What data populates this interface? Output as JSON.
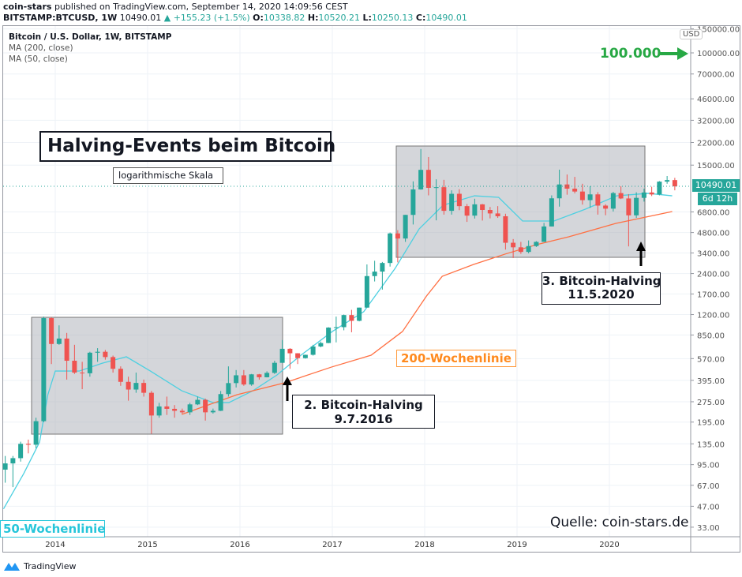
{
  "header": {
    "publisher": "coin-stars",
    "published_text": "published on TradingView.com, September 14, 2020 14:09:56 CEST",
    "symbol": "BITSTAMP:BTCUSD, 1W",
    "last": "10490.01",
    "change": "+155.23 (+1.5%)",
    "o_label": "O:",
    "o": "10338.82",
    "h_label": "H:",
    "h": "10520.21",
    "l_label": "L:",
    "l": "10250.13",
    "c_label": "C:",
    "c": "10490.01"
  },
  "legend": {
    "title": "Bitcoin / U.S. Dollar, 1W, BITSTAMP",
    "ma200": "MA (200, close)",
    "ma50": "MA (50, close)"
  },
  "annotations": {
    "main_title": "Halving-Events beim Bitcoin",
    "scale_note": "logarithmische Skala",
    "target": "100.000",
    "ma200_label": "200-Wochenlinie",
    "ma50_label": "50-Wochenlinie",
    "halving2_line1": "2. Bitcoin-Halving",
    "halving2_line2": "9.7.2016",
    "halving3_line1": "3. Bitcoin-Halving",
    "halving3_line2": "11.5.2020",
    "source": "Quelle: coin-stars.de"
  },
  "price_axis": {
    "currency": "USD",
    "last_price": "10490.01",
    "countdown": "6d 12h"
  },
  "footer": {
    "brand": "TradingView"
  },
  "colors": {
    "up": "#26a69a",
    "down": "#ef5350",
    "ma50": "#4dd0e1",
    "ma200": "#ff7043",
    "target": "#27a844",
    "box": "#a9adb5"
  },
  "chart_data": {
    "type": "candlestick",
    "scale": "log",
    "grid": true,
    "ylim": [
      30,
      160000
    ],
    "xlim": [
      2013.4,
      2020.95
    ],
    "x_ticks": [
      "2014",
      "2015",
      "2016",
      "2017",
      "2018",
      "2019",
      "2020"
    ],
    "y_ticks": [
      "150000.00",
      "100000.00",
      "70000.00",
      "46000.00",
      "32000.00",
      "22000.00",
      "15000.00",
      "6800.00",
      "4800.00",
      "3400.00",
      "2400.00",
      "1700.00",
      "1200.00",
      "850.00",
      "570.00",
      "395.00",
      "275.00",
      "195.00",
      "135.00",
      "95.00",
      "67.00",
      "47.00",
      "33.00"
    ],
    "candles_start": "2013-06",
    "candles_interval": "month",
    "ohlc_hlc": [
      [
        110,
        70,
        97
      ],
      [
        110,
        65,
        106
      ],
      [
        140,
        100,
        135
      ],
      [
        145,
        115,
        133
      ],
      [
        210,
        125,
        198
      ],
      [
        1160,
        195,
        1130
      ],
      [
        1150,
        520,
        730
      ],
      [
        1000,
        720,
        800
      ],
      [
        880,
        400,
        550
      ],
      [
        720,
        440,
        450
      ],
      [
        540,
        340,
        445
      ],
      [
        640,
        420,
        630
      ],
      [
        680,
        540,
        640
      ],
      [
        660,
        560,
        585
      ],
      [
        600,
        450,
        480
      ],
      [
        500,
        360,
        385
      ],
      [
        420,
        280,
        338
      ],
      [
        450,
        320,
        378
      ],
      [
        400,
        300,
        320
      ],
      [
        330,
        160,
        218
      ],
      [
        270,
        210,
        254
      ],
      [
        300,
        220,
        244
      ],
      [
        260,
        210,
        236
      ],
      [
        245,
        225,
        230
      ],
      [
        270,
        220,
        263
      ],
      [
        300,
        260,
        284
      ],
      [
        290,
        200,
        230
      ],
      [
        245,
        225,
        236
      ],
      [
        330,
        235,
        313
      ],
      [
        500,
        300,
        377
      ],
      [
        470,
        350,
        430
      ],
      [
        470,
        360,
        368
      ],
      [
        440,
        360,
        437
      ],
      [
        440,
        400,
        416
      ],
      [
        460,
        415,
        448
      ],
      [
        550,
        440,
        531
      ],
      [
        780,
        530,
        673
      ],
      [
        680,
        480,
        624
      ],
      [
        625,
        520,
        575
      ],
      [
        610,
        570,
        608
      ],
      [
        720,
        600,
        700
      ],
      [
        760,
        690,
        742
      ],
      [
        970,
        740,
        963
      ],
      [
        1160,
        750,
        970
      ],
      [
        1200,
        920,
        1190
      ],
      [
        1300,
        890,
        1080
      ],
      [
        1350,
        1070,
        1350
      ],
      [
        2800,
        1350,
        2300
      ],
      [
        2980,
        2100,
        2480
      ],
      [
        2920,
        1830,
        2870
      ],
      [
        4800,
        2700,
        4730
      ],
      [
        5000,
        2900,
        4340
      ],
      [
        6470,
        4100,
        6470
      ],
      [
        11400,
        5500,
        9950
      ],
      [
        19700,
        9900,
        13850
      ],
      [
        17200,
        9000,
        10220
      ],
      [
        11800,
        5900,
        10330
      ],
      [
        11700,
        6500,
        6930
      ],
      [
        9800,
        6500,
        9240
      ],
      [
        9990,
        7000,
        7500
      ],
      [
        7780,
        5750,
        6390
      ],
      [
        8500,
        6080,
        7730
      ],
      [
        7780,
        5880,
        7030
      ],
      [
        7400,
        6100,
        6630
      ],
      [
        7500,
        6150,
        6320
      ],
      [
        6600,
        3600,
        4040
      ],
      [
        4300,
        3120,
        3740
      ],
      [
        4100,
        3350,
        3460
      ],
      [
        4200,
        3380,
        3820
      ],
      [
        4150,
        3760,
        4100
      ],
      [
        5650,
        4100,
        5320
      ],
      [
        9000,
        5320,
        8560
      ],
      [
        13900,
        7440,
        10820
      ],
      [
        12800,
        9100,
        10080
      ],
      [
        12300,
        9300,
        9600
      ],
      [
        10950,
        7700,
        8300
      ],
      [
        10500,
        7300,
        9150
      ],
      [
        9500,
        6500,
        7570
      ],
      [
        7750,
        6430,
        7190
      ],
      [
        9550,
        6850,
        9350
      ],
      [
        10500,
        8450,
        8540
      ],
      [
        9190,
        3800,
        6420
      ],
      [
        9480,
        6150,
        8630
      ],
      [
        10080,
        8100,
        9450
      ],
      [
        10400,
        8900,
        9140
      ],
      [
        11450,
        9000,
        11350
      ],
      [
        12480,
        10950,
        11650
      ],
      [
        12100,
        9800,
        10490
      ]
    ],
    "series": [
      {
        "name": "MA (50, close)",
        "points": [
          [
            2013.44,
            45
          ],
          [
            2013.66,
            82
          ],
          [
            2013.83,
            139
          ],
          [
            2013.92,
            310
          ],
          [
            2014.0,
            462
          ],
          [
            2014.26,
            462
          ],
          [
            2014.51,
            528
          ],
          [
            2014.77,
            588
          ],
          [
            2015.03,
            462
          ],
          [
            2015.37,
            331
          ],
          [
            2015.71,
            271
          ],
          [
            2015.88,
            271
          ],
          [
            2016.14,
            331
          ],
          [
            2016.4,
            432
          ],
          [
            2016.66,
            604
          ],
          [
            2017.0,
            902
          ],
          [
            2017.34,
            1259
          ],
          [
            2017.68,
            2618
          ],
          [
            2017.94,
            5105
          ],
          [
            2018.2,
            7620
          ],
          [
            2018.54,
            8935
          ],
          [
            2018.8,
            8710
          ],
          [
            2019.06,
            5834
          ],
          [
            2019.4,
            5834
          ],
          [
            2019.74,
            7127
          ],
          [
            2020.08,
            8935
          ],
          [
            2020.42,
            9311
          ],
          [
            2020.68,
            8935
          ]
        ]
      },
      {
        "name": "MA (200, close)",
        "points": [
          [
            2015.37,
            222
          ],
          [
            2015.97,
            310
          ],
          [
            2016.48,
            378
          ],
          [
            2016.99,
            494
          ],
          [
            2017.42,
            604
          ],
          [
            2017.76,
            902
          ],
          [
            2018.02,
            1643
          ],
          [
            2018.19,
            2291
          ],
          [
            2018.53,
            2800
          ],
          [
            2018.87,
            3334
          ],
          [
            2019.21,
            3908
          ],
          [
            2019.56,
            4467
          ],
          [
            2020.07,
            5605
          ],
          [
            2020.68,
            6843
          ]
        ]
      }
    ]
  }
}
